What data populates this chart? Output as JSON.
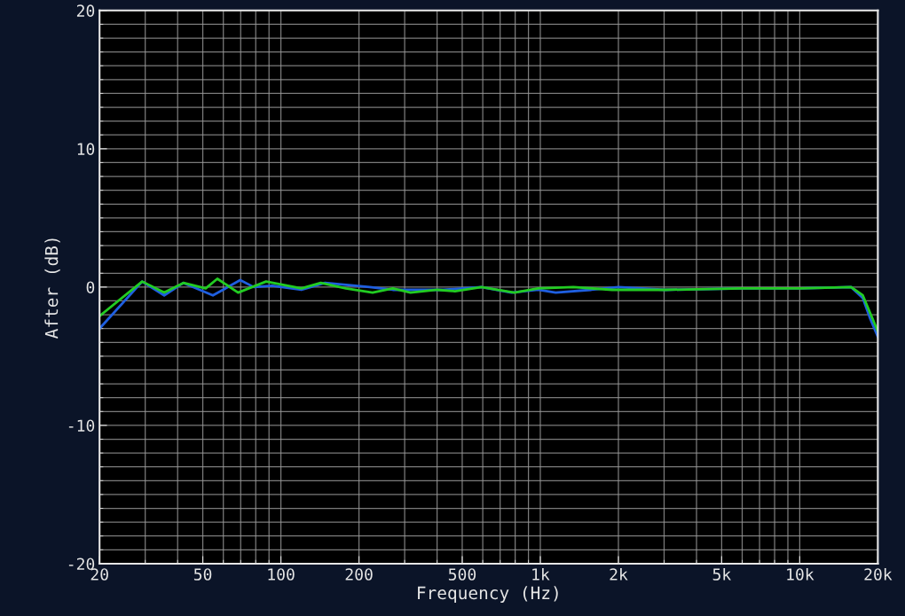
{
  "chart_data": {
    "type": "line",
    "xlabel": "Frequency (Hz)",
    "ylabel": "After (dB)",
    "log": "x",
    "grid": true,
    "xlim": [
      20,
      20000
    ],
    "ylim": [
      -20,
      20
    ],
    "xticks": [
      20,
      50,
      100,
      200,
      500,
      {
        "value": 1000,
        "label": "1k"
      },
      {
        "value": 2000,
        "label": "2k"
      },
      {
        "value": 5000,
        "label": "5k"
      },
      {
        "value": 10000,
        "label": "10k"
      },
      {
        "value": 20000,
        "label": "20k"
      }
    ],
    "yticks": [
      -20,
      -10,
      0,
      10,
      20
    ],
    "series": [
      {
        "color": "#1f5fe0",
        "x": [
          20,
          29.2,
          35.5,
          42.1,
          54.7,
          69.7,
          78.6,
          92.5,
          120,
          148,
          220,
          270,
          316,
          424,
          593,
          774,
          980,
          1146,
          1571,
          2000,
          3027,
          6000,
          10000,
          15780,
          17500,
          18700,
          20000
        ],
        "values": [
          -3.0,
          0.4,
          -0.6,
          0.3,
          -0.6,
          0.5,
          0.0,
          0.1,
          -0.2,
          0.3,
          0.0,
          -0.2,
          -0.2,
          -0.2,
          0.0,
          -0.4,
          -0.2,
          -0.4,
          -0.2,
          0.0,
          -0.2,
          -0.1,
          -0.1,
          0.0,
          -0.8,
          -2.3,
          -3.6
        ]
      },
      {
        "color": "#22cc22",
        "x": [
          20,
          29.2,
          35.5,
          42.1,
          51.3,
          56.9,
          68.4,
          87.7,
          120,
          142.5,
          178,
          225.6,
          270,
          316,
          401,
          469,
          593,
          794,
          980,
          1342,
          1888,
          3027,
          6000,
          10000,
          15780,
          17500,
          18700,
          20000
        ],
        "values": [
          -2.1,
          0.4,
          -0.4,
          0.3,
          -0.1,
          0.6,
          -0.4,
          0.4,
          -0.1,
          0.3,
          -0.1,
          -0.4,
          -0.1,
          -0.4,
          -0.2,
          -0.3,
          0.0,
          -0.4,
          -0.1,
          0.0,
          -0.2,
          -0.2,
          -0.1,
          -0.1,
          0.0,
          -0.6,
          -1.9,
          -3.2
        ]
      }
    ]
  }
}
